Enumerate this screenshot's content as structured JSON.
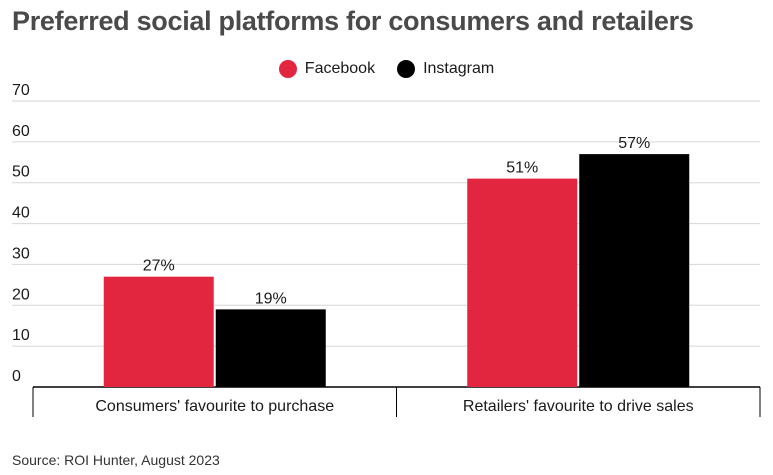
{
  "chart_data": {
    "type": "bar",
    "title": "Preferred social platforms for consumers and retailers",
    "categories": [
      "Consumers' favourite to purchase",
      "Retailers' favourite to drive sales"
    ],
    "series": [
      {
        "name": "Facebook",
        "values": [
          27,
          51
        ],
        "labels": [
          "27%",
          "51%"
        ],
        "color": "#e3263f"
      },
      {
        "name": "Instagram",
        "values": [
          19,
          57
        ],
        "labels": [
          "19%",
          "57%"
        ],
        "color": "#000000"
      }
    ],
    "ylim": [
      0,
      70
    ],
    "yticks": [
      0,
      10,
      20,
      30,
      40,
      50,
      60,
      70
    ],
    "grid": true,
    "legend": "top-center",
    "source": "Source:  ROI Hunter, August 2023"
  }
}
